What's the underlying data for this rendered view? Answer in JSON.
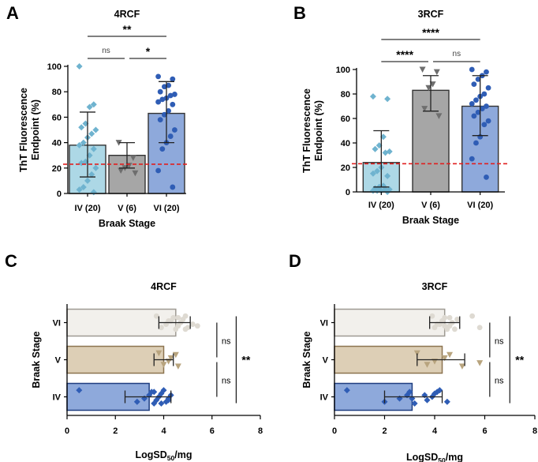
{
  "panels": [
    {
      "letter": "A",
      "chart_data": {
        "type": "bar",
        "orientation": "vertical",
        "style": "points",
        "title": "4RCF",
        "xlabel": "Braak Stage",
        "ylabel_lines": [
          "ThT Fluorescence",
          "Endpoint (%)"
        ],
        "ylim": [
          0,
          100
        ],
        "yticks": [
          "0",
          "20",
          "40",
          "60",
          "80",
          "100"
        ],
        "categories": [
          "IV (20)",
          "V (6)",
          "VI (20)"
        ],
        "values": [
          38,
          30,
          63
        ],
        "errors": [
          [
            13,
            64
          ],
          [
            20,
            40
          ],
          [
            40,
            88
          ]
        ],
        "bar_fills": [
          "#add8e6",
          "#a6a6a6",
          "#8ea9db"
        ],
        "point_colors": [
          "#6fb3cf",
          "#6e6e6e",
          "#2f5db5"
        ],
        "markers": [
          "diamond",
          "triangle-down",
          "circle"
        ],
        "points": [
          [
            100,
            70,
            68,
            55,
            52,
            50,
            47,
            44,
            40,
            38,
            35,
            30,
            25,
            24,
            20,
            15,
            10,
            5,
            3,
            1
          ],
          [
            40,
            28,
            22,
            20,
            18,
            16
          ],
          [
            92,
            90,
            85,
            84,
            80,
            78,
            77,
            75,
            74,
            72,
            70,
            65,
            62,
            58,
            50,
            45,
            40,
            35,
            18,
            5
          ]
        ],
        "threshold": 23,
        "significance": [
          {
            "from": 0,
            "to": 1,
            "label": "ns",
            "level": 1
          },
          {
            "from": 1,
            "to": 2,
            "label": "*",
            "level": 1
          },
          {
            "from": 0,
            "to": 2,
            "label": "**",
            "level": 2
          }
        ]
      }
    },
    {
      "letter": "B",
      "chart_data": {
        "type": "bar",
        "orientation": "vertical",
        "style": "points",
        "title": "3RCF",
        "xlabel": "Braak Stage",
        "ylabel_lines": [
          "ThT Fluorescence",
          "Endpoint (%)"
        ],
        "ylim": [
          0,
          100
        ],
        "yticks": [
          "0",
          "20",
          "40",
          "60",
          "80",
          "100"
        ],
        "categories": [
          "IV (20)",
          "V (6)",
          "VI (20)"
        ],
        "values": [
          24,
          83,
          70
        ],
        "errors": [
          [
            4,
            50
          ],
          [
            66,
            95
          ],
          [
            46,
            95
          ]
        ],
        "bar_fills": [
          "#add8e6",
          "#a6a6a6",
          "#8ea9db"
        ],
        "point_colors": [
          "#6fb3cf",
          "#6e6e6e",
          "#2f5db5"
        ],
        "markers": [
          "diamond",
          "triangle-down",
          "circle"
        ],
        "points": [
          [
            78,
            76,
            45,
            38,
            35,
            33,
            32,
            20,
            17,
            15,
            13,
            5,
            4,
            3,
            2,
            2,
            1,
            1,
            1,
            0
          ],
          [
            100,
            98,
            88,
            85,
            68,
            62
          ],
          [
            100,
            98,
            95,
            92,
            88,
            85,
            80,
            78,
            75,
            72,
            70,
            68,
            65,
            62,
            58,
            55,
            45,
            40,
            27,
            12
          ]
        ],
        "threshold": 23,
        "significance": [
          {
            "from": 0,
            "to": 1,
            "label": "****",
            "level": 1
          },
          {
            "from": 1,
            "to": 2,
            "label": "ns",
            "level": 1
          },
          {
            "from": 0,
            "to": 2,
            "label": "****",
            "level": 2
          }
        ]
      }
    },
    {
      "letter": "C",
      "chart_data": {
        "type": "bar",
        "orientation": "horizontal",
        "style": "points",
        "title": "4RCF",
        "ylabel": "Braak Stage",
        "xlabel_main": "LogSD",
        "xlabel_sub": "50",
        "xlabel_tail": "/mg",
        "xlim": [
          0,
          8
        ],
        "xticks": [
          "0",
          "2",
          "4",
          "6",
          "8"
        ],
        "categories": [
          "VI",
          "V",
          "IV"
        ],
        "values": [
          4.5,
          4.0,
          3.4
        ],
        "errors": [
          [
            3.8,
            5.1
          ],
          [
            3.6,
            4.4
          ],
          [
            2.4,
            4.3
          ]
        ],
        "bar_fills": [
          "#f2f0ec",
          "#ddcfb6",
          "#8ea9db"
        ],
        "bar_strokes": [
          "#9e9a92",
          "#8c7450",
          "#1f3e80"
        ],
        "point_colors": [
          "#dedad2",
          "#b8a47e",
          "#2f5db5"
        ],
        "markers": [
          "circle",
          "triangle-down",
          "diamond"
        ],
        "points": [
          [
            3.7,
            3.9,
            4.1,
            4.3,
            4.4,
            4.5,
            4.6,
            4.7,
            4.8,
            4.9,
            5.0,
            5.2,
            4.2,
            4.6,
            4.9,
            5.4
          ],
          [
            3.8,
            4.0,
            4.2,
            4.3,
            4.5,
            4.6
          ],
          [
            0.5,
            2.9,
            3.2,
            3.4,
            3.5,
            3.6,
            3.7,
            3.8,
            3.9,
            4.0,
            4.1,
            4.2,
            4.3,
            3.6,
            3.9,
            4.2
          ]
        ],
        "significance": [
          {
            "from": 0,
            "to": 1,
            "label": "ns",
            "level": 1
          },
          {
            "from": 1,
            "to": 2,
            "label": "ns",
            "level": 1
          },
          {
            "from": 0,
            "to": 2,
            "label": "**",
            "level": 2
          }
        ]
      }
    },
    {
      "letter": "D",
      "chart_data": {
        "type": "bar",
        "orientation": "horizontal",
        "style": "points",
        "title": "3RCF",
        "ylabel": "Braak Stage",
        "xlabel_main": "LogSD",
        "xlabel_sub": "50",
        "xlabel_tail": "/mg",
        "xlim": [
          0,
          8
        ],
        "xticks": [
          "0",
          "2",
          "4",
          "6",
          "8"
        ],
        "categories": [
          "VI",
          "V",
          "IV"
        ],
        "values": [
          4.4,
          4.3,
          3.1
        ],
        "errors": [
          [
            3.8,
            5.0
          ],
          [
            3.3,
            5.2
          ],
          [
            2.0,
            4.3
          ]
        ],
        "bar_fills": [
          "#f2f0ec",
          "#ddcfb6",
          "#8ea9db"
        ],
        "bar_strokes": [
          "#9e9a92",
          "#8c7450",
          "#1f3e80"
        ],
        "point_colors": [
          "#dedad2",
          "#b8a47e",
          "#2f5db5"
        ],
        "markers": [
          "circle",
          "triangle-down",
          "diamond"
        ],
        "points": [
          [
            3.9,
            4.0,
            4.2,
            4.3,
            4.4,
            4.5,
            4.6,
            4.7,
            4.9,
            5.5,
            5.8,
            4.1,
            4.3,
            4.6,
            4.8,
            4.4
          ],
          [
            3.3,
            3.7,
            4.0,
            4.4,
            4.6,
            5.1,
            5.8
          ],
          [
            0.5,
            2.0,
            2.6,
            2.9,
            3.0,
            3.2,
            3.7,
            3.9,
            4.0,
            4.2,
            4.5,
            3.1,
            3.6,
            4.1
          ]
        ],
        "significance": [
          {
            "from": 0,
            "to": 1,
            "label": "ns",
            "level": 1
          },
          {
            "from": 1,
            "to": 2,
            "label": "ns",
            "level": 1
          },
          {
            "from": 0,
            "to": 2,
            "label": "**",
            "level": 2
          }
        ]
      }
    }
  ]
}
